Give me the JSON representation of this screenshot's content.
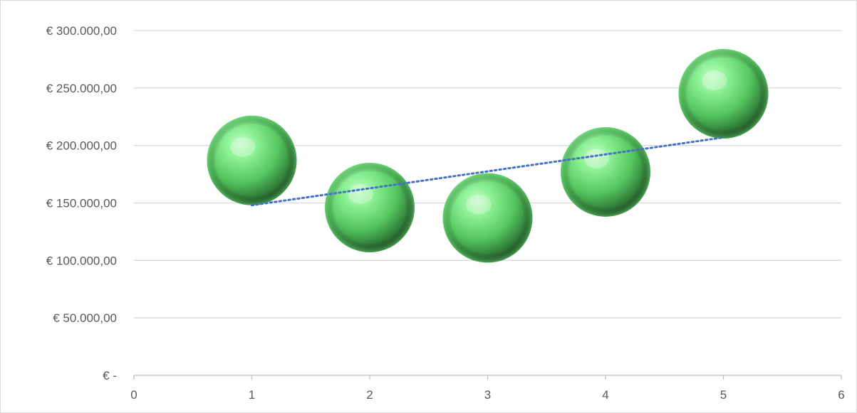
{
  "chart_data": {
    "type": "bubble",
    "title": "",
    "xlabel": "",
    "ylabel": "",
    "xlim": [
      0,
      6
    ],
    "ylim": [
      0,
      300000
    ],
    "x_ticks": [
      "0",
      "1",
      "2",
      "3",
      "4",
      "5",
      "6"
    ],
    "y_ticks": [
      "€ -",
      "€ 50.000,00",
      "€ 100.000,00",
      "€ 150.000,00",
      "€ 200.000,00",
      "€ 250.000,00",
      "€ 300.000,00"
    ],
    "y_tick_values": [
      0,
      50000,
      100000,
      150000,
      200000,
      250000,
      300000
    ],
    "x_tick_values": [
      0,
      1,
      2,
      3,
      4,
      5,
      6
    ],
    "gridlines": "horizontal",
    "series": [
      {
        "points": [
          {
            "x": 1,
            "y": 187000
          },
          {
            "x": 2,
            "y": 146000
          },
          {
            "x": 3,
            "y": 137000
          },
          {
            "x": 4,
            "y": 177000
          },
          {
            "x": 5,
            "y": 245000
          }
        ],
        "color": "#5fd16a"
      }
    ],
    "trendline": {
      "type": "linear",
      "color": "#4472c4",
      "style": "dotted",
      "start": {
        "x": 1,
        "y": 148000
      },
      "end": {
        "x": 5,
        "y": 207000
      }
    }
  }
}
